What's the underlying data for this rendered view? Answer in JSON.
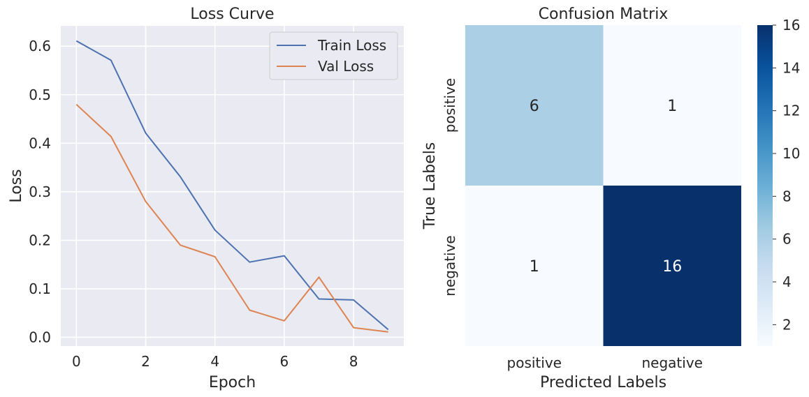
{
  "chart_data": [
    {
      "type": "line",
      "title": "Loss Curve",
      "xlabel": "Epoch",
      "ylabel": "Loss",
      "x": [
        0,
        1,
        2,
        3,
        4,
        5,
        6,
        7,
        8,
        9
      ],
      "xlim": [
        -0.45,
        9.45
      ],
      "ylim": [
        -0.018,
        0.642
      ],
      "xticks": [
        0,
        2,
        4,
        6,
        8
      ],
      "yticks": [
        0.0,
        0.1,
        0.2,
        0.3,
        0.4,
        0.5,
        0.6
      ],
      "xtick_labels": [
        "0",
        "2",
        "4",
        "6",
        "8"
      ],
      "ytick_labels": [
        "0.0",
        "0.1",
        "0.2",
        "0.3",
        "0.4",
        "0.5",
        "0.6"
      ],
      "grid": true,
      "legend_position": "top-right",
      "series": [
        {
          "name": "Train Loss",
          "color": "#4c72b0",
          "values": [
            0.611,
            0.571,
            0.421,
            0.331,
            0.221,
            0.155,
            0.168,
            0.079,
            0.077,
            0.016
          ]
        },
        {
          "name": "Val Loss",
          "color": "#dd8452",
          "values": [
            0.48,
            0.414,
            0.28,
            0.19,
            0.166,
            0.056,
            0.034,
            0.124,
            0.02,
            0.011
          ]
        }
      ]
    },
    {
      "type": "heatmap",
      "title": "Confusion Matrix",
      "xlabel": "Predicted Labels",
      "ylabel": "True Labels",
      "x_categories": [
        "positive",
        "negative"
      ],
      "y_categories": [
        "positive",
        "negative"
      ],
      "values": [
        [
          6,
          1
        ],
        [
          1,
          16
        ]
      ],
      "colormap": "Blues",
      "colorbar": {
        "min": 1,
        "max": 16,
        "ticks": [
          2,
          4,
          6,
          8,
          10,
          12,
          14,
          16
        ],
        "tick_labels": [
          "2",
          "4",
          "6",
          "8",
          "10",
          "12",
          "14",
          "16"
        ]
      }
    }
  ]
}
